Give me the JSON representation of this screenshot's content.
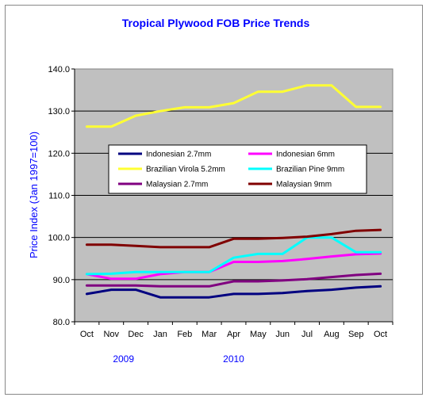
{
  "chart_data": {
    "type": "line",
    "title": "Tropical Plywood FOB Price Trends",
    "ylabel": "Price Index (Jan 1997=100)",
    "xlabel": "",
    "ylim": [
      80,
      140
    ],
    "yticks": [
      "80.0",
      "90.0",
      "100.0",
      "110.0",
      "120.0",
      "130.0",
      "140.0"
    ],
    "categories": [
      "Oct",
      "Nov",
      "Dec",
      "Jan",
      "Feb",
      "Mar",
      "Apr",
      "May",
      "Jun",
      "Jul",
      "Aug",
      "Sep",
      "Oct"
    ],
    "year_labels": [
      {
        "text": "2009",
        "index": 1.5
      },
      {
        "text": "2010",
        "index": 6.0
      }
    ],
    "grid": "horizontal",
    "legend_position": "center",
    "series": [
      {
        "name": "Indonesian 2.7mm",
        "color": "#000080",
        "values": [
          86.6,
          87.6,
          87.6,
          85.8,
          85.8,
          85.8,
          86.6,
          86.6,
          86.8,
          87.3,
          87.6,
          88.1,
          88.4
        ]
      },
      {
        "name": "Indonesian 6mm",
        "color": "#ff00ff",
        "values": [
          91.3,
          90.2,
          90.2,
          91.3,
          91.8,
          91.8,
          94.2,
          94.2,
          94.4,
          94.9,
          95.5,
          96.0,
          96.2
        ]
      },
      {
        "name": "Brazilian Virola 5.2mm",
        "color": "#ffff33",
        "values": [
          126.3,
          126.3,
          128.9,
          130.0,
          130.9,
          130.9,
          131.9,
          134.6,
          134.6,
          136.1,
          136.1,
          131.0,
          131.0
        ]
      },
      {
        "name": "Brazilian Pine 9mm",
        "color": "#00ffff",
        "values": [
          91.3,
          91.4,
          91.8,
          91.8,
          91.8,
          91.8,
          95.2,
          96.1,
          96.1,
          100.0,
          100.0,
          96.5,
          96.5
        ]
      },
      {
        "name": "Malaysian 2.7mm",
        "color": "#800080",
        "values": [
          88.6,
          88.6,
          88.6,
          88.4,
          88.4,
          88.4,
          89.6,
          89.6,
          89.8,
          90.1,
          90.6,
          91.1,
          91.4
        ]
      },
      {
        "name": "Malaysian 9mm",
        "color": "#800000",
        "values": [
          98.3,
          98.3,
          98.0,
          97.7,
          97.7,
          97.7,
          99.7,
          99.7,
          99.9,
          100.2,
          100.8,
          101.6,
          101.8
        ]
      }
    ]
  }
}
